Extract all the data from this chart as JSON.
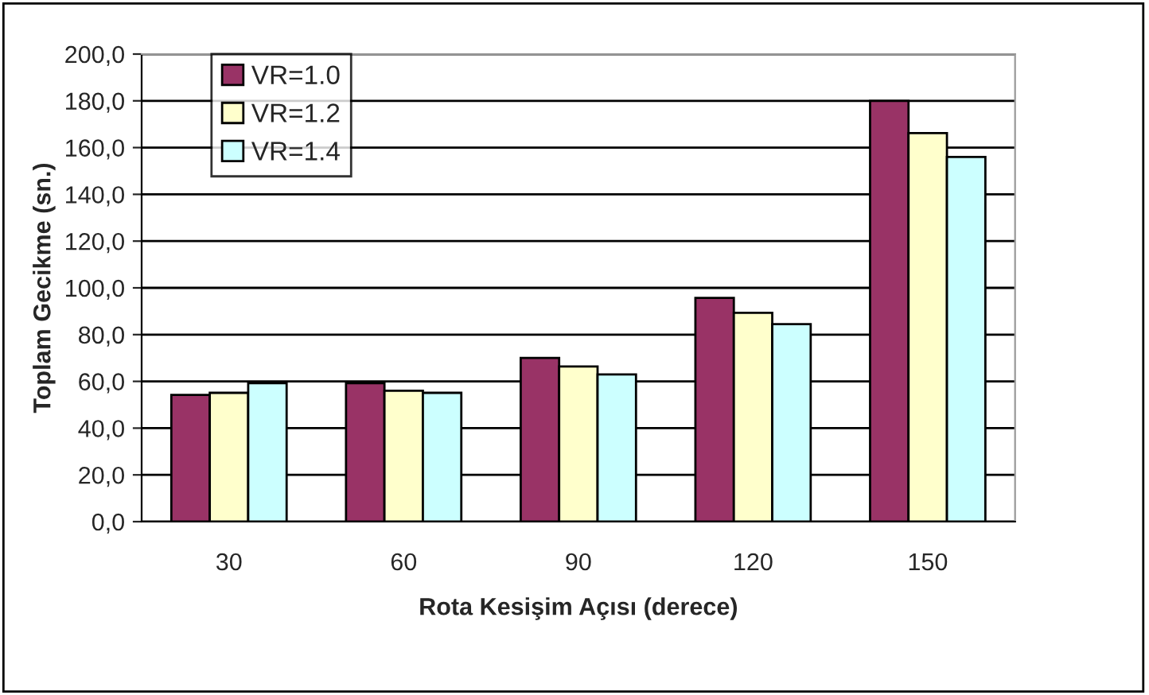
{
  "chart_data": {
    "type": "bar",
    "xlabel": "Rota Kesişim Açısı (derece)",
    "ylabel": "Toplam Gecikme (sn.)",
    "categories": [
      "30",
      "60",
      "90",
      "120",
      "150"
    ],
    "series": [
      {
        "name": "VR=1.0",
        "color": "#993366",
        "values": [
          54.2,
          59.2,
          70.0,
          95.7,
          180.0
        ]
      },
      {
        "name": "VR=1.2",
        "color": "#ffffcc",
        "values": [
          55.1,
          56.0,
          66.4,
          89.3,
          166.2
        ]
      },
      {
        "name": "VR=1.4",
        "color": "#ccffff",
        "values": [
          59.2,
          55.1,
          63.0,
          84.5,
          156.0
        ]
      }
    ],
    "ylim": [
      0,
      200
    ],
    "yticks": [
      {
        "value": 0,
        "label": "0,0"
      },
      {
        "value": 20,
        "label": "20,0"
      },
      {
        "value": 40,
        "label": "40,0"
      },
      {
        "value": 60,
        "label": "60,0"
      },
      {
        "value": 80,
        "label": "80,0"
      },
      {
        "value": 100,
        "label": "100,0"
      },
      {
        "value": 120,
        "label": "120,0"
      },
      {
        "value": 140,
        "label": "140,0"
      },
      {
        "value": 160,
        "label": "160,0"
      },
      {
        "value": 180,
        "label": "180,0"
      },
      {
        "value": 200,
        "label": "200,0"
      }
    ],
    "grid": "y",
    "legend": "top left"
  }
}
